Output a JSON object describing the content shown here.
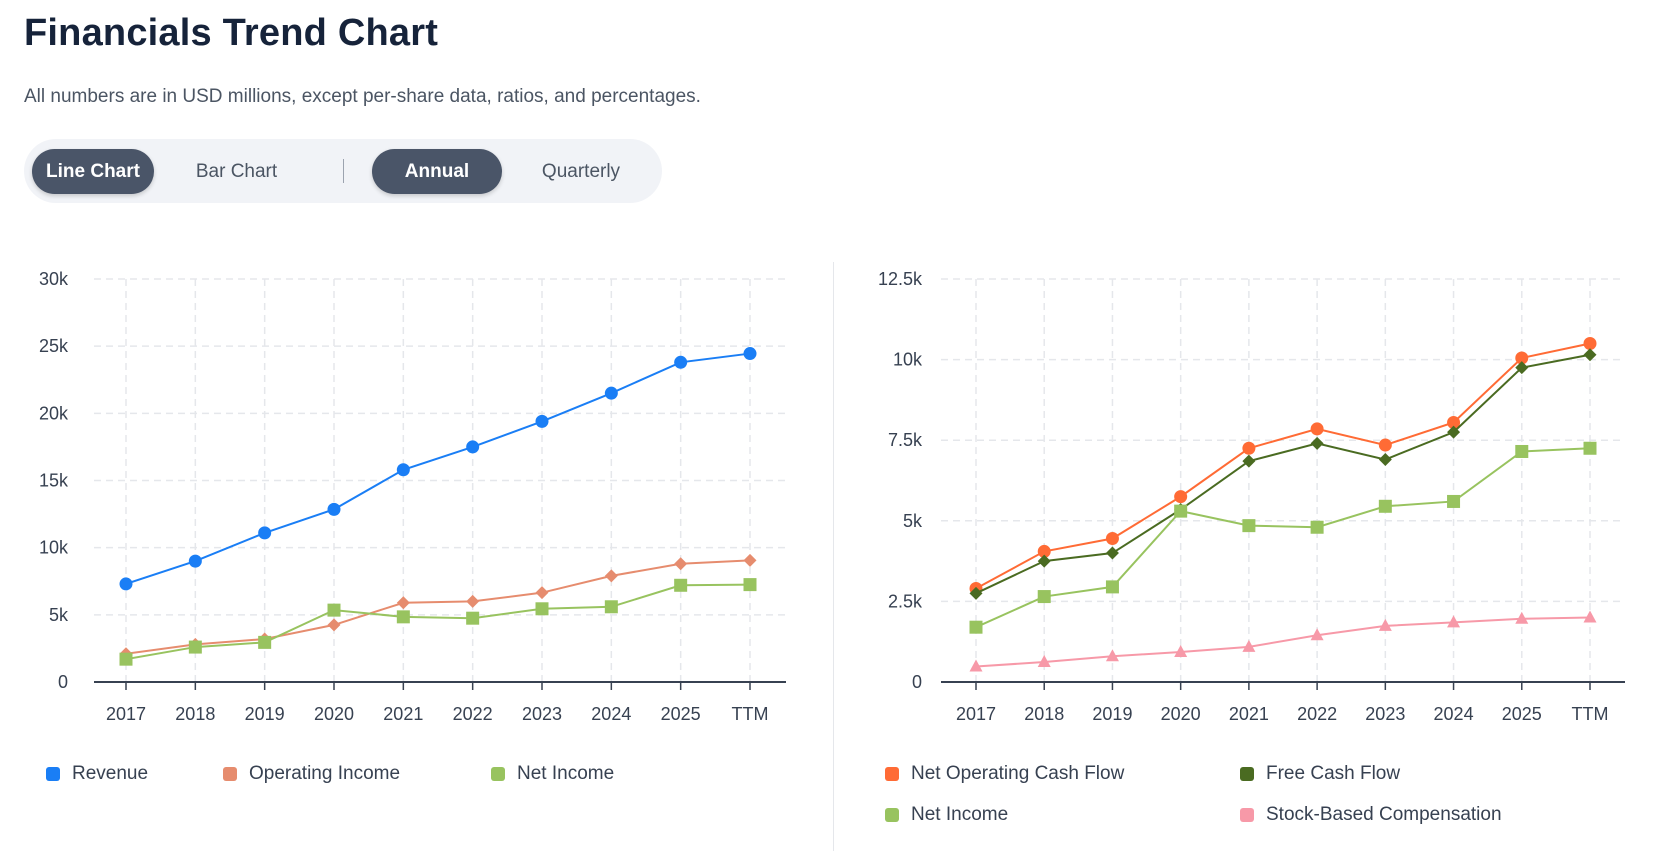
{
  "page": {
    "title": "Financials Trend Chart",
    "subtitle": "All numbers are in USD millions, except per-share data, ratios, and percentages."
  },
  "toggles": {
    "line_chart": "Line Chart",
    "bar_chart": "Bar Chart",
    "annual": "Annual",
    "quarterly": "Quarterly",
    "selected_chart_type": "Line Chart",
    "selected_period": "Annual"
  },
  "chart_data": [
    {
      "type": "line",
      "title": "",
      "xlabel": "",
      "ylabel": "",
      "categories": [
        "2017",
        "2018",
        "2019",
        "2020",
        "2021",
        "2022",
        "2023",
        "2024",
        "2025",
        "TTM"
      ],
      "ylim": [
        0,
        30000
      ],
      "yticks": [
        0,
        5000,
        10000,
        15000,
        20000,
        25000,
        30000
      ],
      "ytick_labels": [
        "0",
        "5k",
        "10k",
        "15k",
        "20k",
        "25k",
        "30k"
      ],
      "grid": true,
      "legend_position": "bottom",
      "series": [
        {
          "name": "Revenue",
          "color": "#1a7ef5",
          "marker": "circle",
          "values": [
            7300,
            9000,
            11100,
            12850,
            15800,
            17500,
            19400,
            21500,
            23800,
            24450
          ]
        },
        {
          "name": "Operating Income",
          "color": "#e68c6e",
          "marker": "diamond",
          "values": [
            2100,
            2800,
            3200,
            4250,
            5900,
            6000,
            6650,
            7900,
            8800,
            9050
          ]
        },
        {
          "name": "Net Income",
          "color": "#98c35f",
          "marker": "square",
          "values": [
            1700,
            2600,
            2950,
            5350,
            4850,
            4750,
            5450,
            5600,
            7200,
            7250
          ]
        }
      ]
    },
    {
      "type": "line",
      "title": "",
      "xlabel": "",
      "ylabel": "",
      "categories": [
        "2017",
        "2018",
        "2019",
        "2020",
        "2021",
        "2022",
        "2023",
        "2024",
        "2025",
        "TTM"
      ],
      "ylim": [
        0,
        12500
      ],
      "yticks": [
        0,
        2500,
        5000,
        7500,
        10000,
        12500
      ],
      "ytick_labels": [
        "0",
        "2.5k",
        "5k",
        "7.5k",
        "10k",
        "12.5k"
      ],
      "grid": true,
      "legend_position": "bottom",
      "series": [
        {
          "name": "Net Operating Cash Flow",
          "color": "#ff6b35",
          "marker": "circle",
          "values": [
            2900,
            4050,
            4450,
            5750,
            7250,
            7850,
            7350,
            8050,
            10050,
            10500
          ]
        },
        {
          "name": "Free Cash Flow",
          "color": "#4a6b21",
          "marker": "diamond",
          "values": [
            2750,
            3750,
            4000,
            5350,
            6850,
            7400,
            6900,
            7750,
            9750,
            10150
          ]
        },
        {
          "name": "Net Income",
          "color": "#98c35f",
          "marker": "square",
          "values": [
            1700,
            2650,
            2950,
            5300,
            4850,
            4800,
            5450,
            5600,
            7150,
            7250
          ]
        },
        {
          "name": "Stock-Based Compensation",
          "color": "#f799a8",
          "marker": "triangle",
          "values": [
            480,
            620,
            800,
            930,
            1090,
            1450,
            1740,
            1850,
            1960,
            2000
          ]
        }
      ]
    }
  ]
}
